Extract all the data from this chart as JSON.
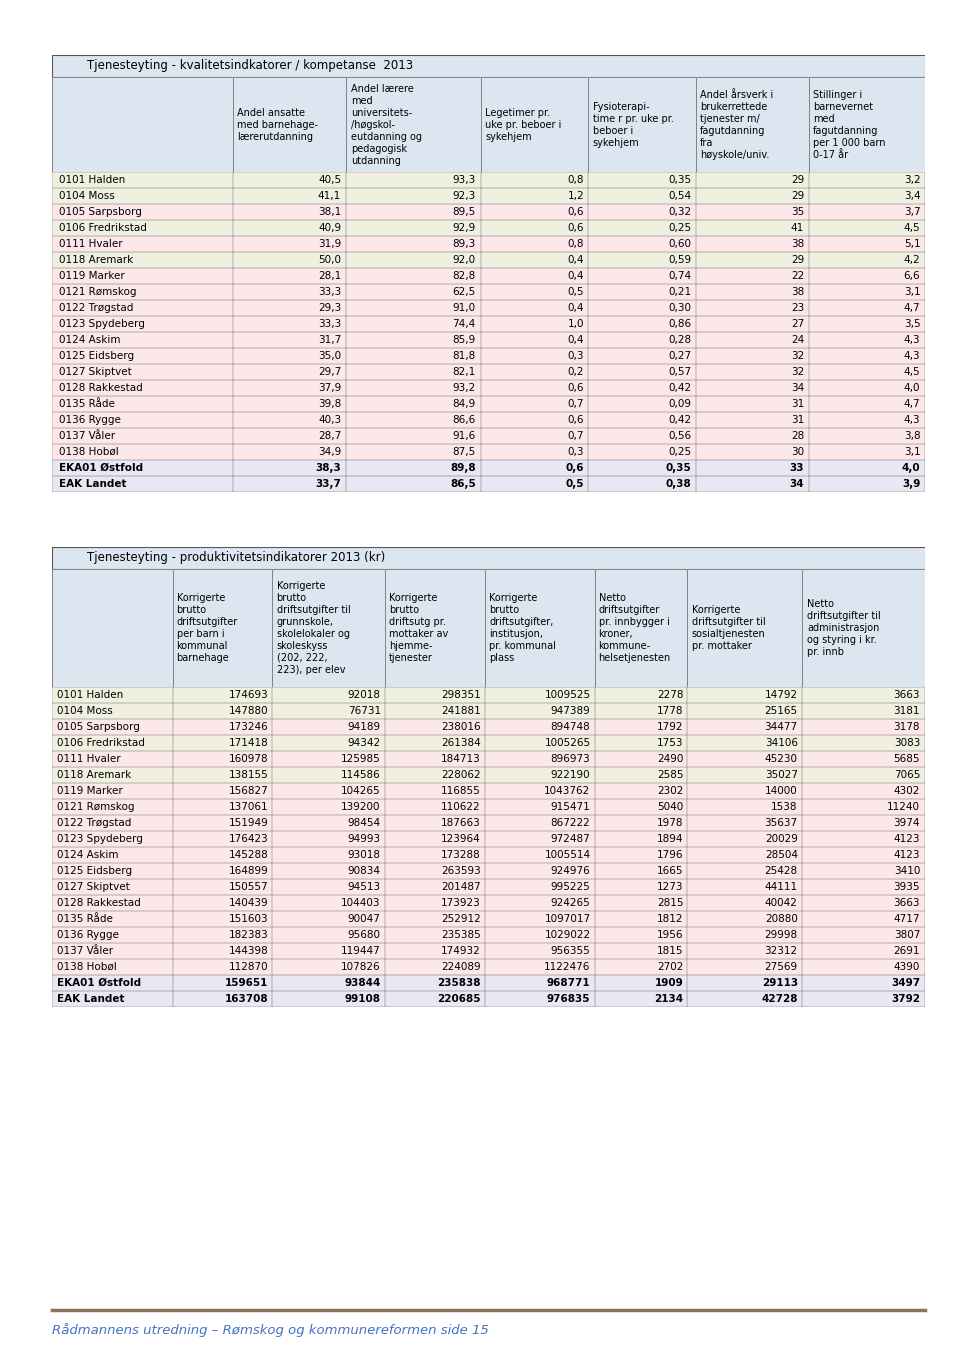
{
  "table1_title": "Tjenesteyting - kvalitetsindkatorer / kompetanse  2013",
  "table1_headers": [
    "",
    "Andel ansatte\nmed barnehage-\nlærerutdanning",
    "Andel lærere\nmed\nuniversitets-\n/høgskol-\neutdanning og\npedagogisk\nutdanning",
    "Legetimer pr.\nuke pr. beboer i\nsykehjem",
    "Fysioterapi-\ntime r pr. uke pr.\nbeboer i\nsykehjem",
    "Andel årsverk i\nbrukerrettede\ntjenester m/\nfagutdanning\nfra\nhøyskole/univ.",
    "Stillinger i\nbarnevernet\nmed\nfagutdanning\nper 1 000 barn\n0-17 år"
  ],
  "table1_rows": [
    [
      "0101 Halden",
      "40,5",
      "93,3",
      "0,8",
      "0,35",
      "29",
      "3,2"
    ],
    [
      "0104 Moss",
      "41,1",
      "92,3",
      "1,2",
      "0,54",
      "29",
      "3,4"
    ],
    [
      "0105 Sarpsborg",
      "38,1",
      "89,5",
      "0,6",
      "0,32",
      "35",
      "3,7"
    ],
    [
      "0106 Fredrikstad",
      "40,9",
      "92,9",
      "0,6",
      "0,25",
      "41",
      "4,5"
    ],
    [
      "0111 Hvaler",
      "31,9",
      "89,3",
      "0,8",
      "0,60",
      "38",
      "5,1"
    ],
    [
      "0118 Aremark",
      "50,0",
      "92,0",
      "0,4",
      "0,59",
      "29",
      "4,2"
    ],
    [
      "0119 Marker",
      "28,1",
      "82,8",
      "0,4",
      "0,74",
      "22",
      "6,6"
    ],
    [
      "0121 Rømskog",
      "33,3",
      "62,5",
      "0,5",
      "0,21",
      "38",
      "3,1"
    ],
    [
      "0122 Trøgstad",
      "29,3",
      "91,0",
      "0,4",
      "0,30",
      "23",
      "4,7"
    ],
    [
      "0123 Spydeberg",
      "33,3",
      "74,4",
      "1,0",
      "0,86",
      "27",
      "3,5"
    ],
    [
      "0124 Askim",
      "31,7",
      "85,9",
      "0,4",
      "0,28",
      "24",
      "4,3"
    ],
    [
      "0125 Eidsberg",
      "35,0",
      "81,8",
      "0,3",
      "0,27",
      "32",
      "4,3"
    ],
    [
      "0127 Skiptvet",
      "29,7",
      "82,1",
      "0,2",
      "0,57",
      "32",
      "4,5"
    ],
    [
      "0128 Rakkestad",
      "37,9",
      "93,2",
      "0,6",
      "0,42",
      "34",
      "4,0"
    ],
    [
      "0135 Råde",
      "39,8",
      "84,9",
      "0,7",
      "0,09",
      "31",
      "4,7"
    ],
    [
      "0136 Rygge",
      "40,3",
      "86,6",
      "0,6",
      "0,42",
      "31",
      "4,3"
    ],
    [
      "0137 Våler",
      "28,7",
      "91,6",
      "0,7",
      "0,56",
      "28",
      "3,8"
    ],
    [
      "0138 Hobøl",
      "34,9",
      "87,5",
      "0,3",
      "0,25",
      "30",
      "3,1"
    ],
    [
      "EKA01 Østfold",
      "38,3",
      "89,8",
      "0,6",
      "0,35",
      "33",
      "4,0"
    ],
    [
      "EAK Landet",
      "33,7",
      "86,5",
      "0,5",
      "0,38",
      "34",
      "3,9"
    ]
  ],
  "table1_bold_rows": [
    18,
    19
  ],
  "table1_row_colors": [
    "#f0f0e0",
    "#f0f0e0",
    "#fce8e8",
    "#f0f0e0",
    "#fce8e8",
    "#f0f0e0",
    "#fce8e8",
    "#fce8e8",
    "#fce8e8",
    "#fce8e8",
    "#fce8e8",
    "#fce8e8",
    "#fce8e8",
    "#fce8e8",
    "#fce8e8",
    "#fce8e8",
    "#fce8e8",
    "#fce8e8",
    "#e8e8f4",
    "#e8e8f4"
  ],
  "table2_title": "Tjenesteyting - produktivitetsindikatorer 2013 (kr)",
  "table2_headers": [
    "",
    "Korrigerte\nbrutto\ndriftsutgifter\nper barn i\nkommunal\nbarnehage",
    "Korrigerte\nbrutto\ndriftsutgifter til\ngrunnskole,\nskolelokaler og\nskoleskyss\n(202, 222,\n223), per elev",
    "Korrigerte\nbrutto\ndriftsutg pr.\nmottaker av\nhjemme-\ntjenester",
    "Korrigerte\nbrutto\ndriftsutgifter,\ninstitusjon,\npr. kommunal\nplass",
    "Netto\ndriftsutgifter\npr. innbygger i\nkroner,\nkommune-\nhelsetjenesten",
    "Korrigerte\ndriftsutgifter til\nsosialtjenesten\npr. mottaker",
    "Netto\ndriftsutgifter til\nadministrasjon\nog styring i kr.\npr. innb"
  ],
  "table2_rows": [
    [
      "0101 Halden",
      "174693",
      "92018",
      "298351",
      "1009525",
      "2278",
      "14792",
      "3663"
    ],
    [
      "0104 Moss",
      "147880",
      "76731",
      "241881",
      "947389",
      "1778",
      "25165",
      "3181"
    ],
    [
      "0105 Sarpsborg",
      "173246",
      "94189",
      "238016",
      "894748",
      "1792",
      "34477",
      "3178"
    ],
    [
      "0106 Fredrikstad",
      "171418",
      "94342",
      "261384",
      "1005265",
      "1753",
      "34106",
      "3083"
    ],
    [
      "0111 Hvaler",
      "160978",
      "125985",
      "184713",
      "896973",
      "2490",
      "45230",
      "5685"
    ],
    [
      "0118 Aremark",
      "138155",
      "114586",
      "228062",
      "922190",
      "2585",
      "35027",
      "7065"
    ],
    [
      "0119 Marker",
      "156827",
      "104265",
      "116855",
      "1043762",
      "2302",
      "14000",
      "4302"
    ],
    [
      "0121 Rømskog",
      "137061",
      "139200",
      "110622",
      "915471",
      "5040",
      "1538",
      "11240"
    ],
    [
      "0122 Trøgstad",
      "151949",
      "98454",
      "187663",
      "867222",
      "1978",
      "35637",
      "3974"
    ],
    [
      "0123 Spydeberg",
      "176423",
      "94993",
      "123964",
      "972487",
      "1894",
      "20029",
      "4123"
    ],
    [
      "0124 Askim",
      "145288",
      "93018",
      "173288",
      "1005514",
      "1796",
      "28504",
      "4123"
    ],
    [
      "0125 Eidsberg",
      "164899",
      "90834",
      "263593",
      "924976",
      "1665",
      "25428",
      "3410"
    ],
    [
      "0127 Skiptvet",
      "150557",
      "94513",
      "201487",
      "995225",
      "1273",
      "44111",
      "3935"
    ],
    [
      "0128 Rakkestad",
      "140439",
      "104403",
      "173923",
      "924265",
      "2815",
      "40042",
      "3663"
    ],
    [
      "0135 Råde",
      "151603",
      "90047",
      "252912",
      "1097017",
      "1812",
      "20880",
      "4717"
    ],
    [
      "0136 Rygge",
      "182383",
      "95680",
      "235385",
      "1029022",
      "1956",
      "29998",
      "3807"
    ],
    [
      "0137 Våler",
      "144398",
      "119447",
      "174932",
      "956355",
      "1815",
      "32312",
      "2691"
    ],
    [
      "0138 Hobøl",
      "112870",
      "107826",
      "224089",
      "1122476",
      "2702",
      "27569",
      "4390"
    ],
    [
      "EKA01 Østfold",
      "159651",
      "93844",
      "235838",
      "968771",
      "1909",
      "29113",
      "3497"
    ],
    [
      "EAK Landet",
      "163708",
      "99108",
      "220685",
      "976835",
      "2134",
      "42728",
      "3792"
    ]
  ],
  "table2_bold_rows": [
    18,
    19
  ],
  "table2_row_colors": [
    "#f0f0e0",
    "#f0f0e0",
    "#fce8e8",
    "#f0f0e0",
    "#fce8e8",
    "#f0f0e0",
    "#fce8e8",
    "#fce8e8",
    "#fce8e8",
    "#fce8e8",
    "#fce8e8",
    "#fce8e8",
    "#fce8e8",
    "#fce8e8",
    "#fce8e8",
    "#fce8e8",
    "#fce8e8",
    "#fce8e8",
    "#e8e8f4",
    "#e8e8f4"
  ],
  "footer_text": "Rådmannens utredning – Rømskog og kommunereformen side 15",
  "footer_color": "#4472c4",
  "footer_line_color": "#8B7355",
  "bg_color": "#ffffff",
  "header_bg": "#dce6f1",
  "title_bg": "#dce6f1",
  "border_color": "#555555",
  "font_size_data": 7.5,
  "font_size_header": 7.0,
  "font_size_title": 8.5
}
